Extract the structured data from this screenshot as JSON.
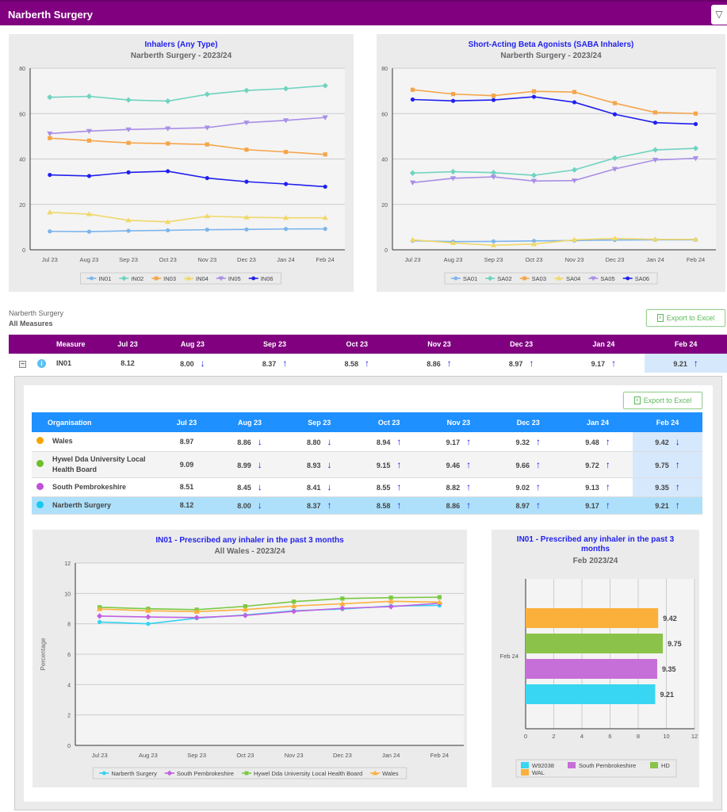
{
  "header": {
    "title": "Narberth Surgery",
    "filter_icon": "filter-icon"
  },
  "months": [
    "Jul 23",
    "Aug 23",
    "Sep 23",
    "Oct 23",
    "Nov 23",
    "Dec 23",
    "Jan 24",
    "Feb 24"
  ],
  "chart_data": [
    {
      "type": "line",
      "title": "Inhalers (Any Type)",
      "subtitle": "Narberth Surgery - 2023/24",
      "ylim": [
        0,
        80
      ],
      "yticks": [
        0,
        20,
        40,
        60,
        80
      ],
      "legend": "bottom",
      "series": [
        {
          "name": "IN01",
          "color": "#7cb5ec",
          "marker": "circle",
          "values": [
            8.12,
            8.0,
            8.37,
            8.58,
            8.86,
            8.97,
            9.17,
            9.21
          ]
        },
        {
          "name": "IN02",
          "color": "#6fd3c0",
          "marker": "diamond",
          "values": [
            67.2,
            67.6,
            66.0,
            65.5,
            68.5,
            70.2,
            71.0,
            72.3
          ]
        },
        {
          "name": "IN03",
          "color": "#f5a54a",
          "marker": "square",
          "values": [
            49.2,
            48.1,
            47.1,
            46.8,
            46.4,
            44.1,
            43.1,
            42.0
          ]
        },
        {
          "name": "IN04",
          "color": "#f0d86a",
          "marker": "triangle",
          "values": [
            16.5,
            15.7,
            13.0,
            12.3,
            14.8,
            14.3,
            14.1,
            14.1
          ]
        },
        {
          "name": "IN05",
          "color": "#a98ee6",
          "marker": "triangle-down",
          "values": [
            51.2,
            52.3,
            53.0,
            53.4,
            53.8,
            56.0,
            57.0,
            58.3
          ]
        },
        {
          "name": "IN06",
          "color": "#2020ee",
          "marker": "circle",
          "values": [
            33.0,
            32.5,
            34.1,
            34.6,
            31.6,
            30.0,
            29.0,
            27.8
          ]
        }
      ]
    },
    {
      "type": "line",
      "title": "Short-Acting Beta Agonists (SABA Inhalers)",
      "subtitle": "Narberth Surgery - 2023/24",
      "ylim": [
        0,
        80
      ],
      "yticks": [
        0,
        20,
        40,
        60,
        80
      ],
      "legend": "bottom",
      "series": [
        {
          "name": "SA01",
          "color": "#7cb5ec",
          "marker": "circle",
          "values": [
            4.0,
            3.6,
            3.7,
            3.9,
            4.1,
            4.3,
            4.4,
            4.4
          ]
        },
        {
          "name": "SA02",
          "color": "#6fd3c0",
          "marker": "diamond",
          "values": [
            33.8,
            34.4,
            34.0,
            32.8,
            35.2,
            40.4,
            44.0,
            44.7
          ]
        },
        {
          "name": "SA03",
          "color": "#f5a54a",
          "marker": "square",
          "values": [
            70.5,
            68.6,
            67.9,
            69.8,
            69.5,
            64.6,
            60.5,
            60.0
          ]
        },
        {
          "name": "SA04",
          "color": "#f0d86a",
          "marker": "triangle",
          "values": [
            4.4,
            3.0,
            2.0,
            2.5,
            4.4,
            5.0,
            4.6,
            4.6
          ]
        },
        {
          "name": "SA05",
          "color": "#a98ee6",
          "marker": "triangle-down",
          "values": [
            29.6,
            31.5,
            32.1,
            30.3,
            30.5,
            35.6,
            39.6,
            40.3
          ]
        },
        {
          "name": "SA06",
          "color": "#2020ee",
          "marker": "circle",
          "values": [
            66.2,
            65.6,
            66.0,
            67.4,
            65.0,
            59.7,
            56.0,
            55.4
          ]
        }
      ]
    },
    {
      "type": "line",
      "title": "IN01 - Prescribed any inhaler in the past 3 months",
      "subtitle": "All Wales - 2023/24",
      "ylabel": "Percentage",
      "ylim": [
        0,
        12
      ],
      "yticks": [
        0,
        2,
        4,
        6,
        8,
        10,
        12
      ],
      "legend": "bottom",
      "series": [
        {
          "name": "Narberth Surgery",
          "color": "#33d4f0",
          "marker": "circle",
          "values": [
            8.12,
            8.0,
            8.37,
            8.58,
            8.86,
            8.97,
            9.17,
            9.21
          ]
        },
        {
          "name": "South Pembrokeshire",
          "color": "#c060e0",
          "marker": "diamond",
          "values": [
            8.51,
            8.45,
            8.41,
            8.55,
            8.82,
            9.02,
            9.13,
            9.35
          ]
        },
        {
          "name": "Hywel Dda University Local Health Board",
          "color": "#7ac943",
          "marker": "square",
          "values": [
            9.09,
            8.99,
            8.93,
            9.15,
            9.46,
            9.66,
            9.72,
            9.75
          ]
        },
        {
          "name": "Wales",
          "color": "#fbb03b",
          "marker": "triangle",
          "values": [
            8.97,
            8.86,
            8.8,
            8.94,
            9.17,
            9.32,
            9.48,
            9.42
          ]
        }
      ]
    },
    {
      "type": "bar",
      "orientation": "horizontal",
      "title": "IN01 - Prescribed any inhaler in the past 3",
      "title2": "months",
      "subtitle": "Feb 2023/24",
      "category": "Feb 24",
      "xlim": [
        0,
        12
      ],
      "xticks": [
        0,
        2,
        4,
        6,
        8,
        10,
        12
      ],
      "bars": [
        {
          "name": "WAL",
          "value": 9.42,
          "color": "#fbb03b"
        },
        {
          "name": "HD",
          "value": 9.75,
          "color": "#8bc34a"
        },
        {
          "name": "South Pembrokeshire",
          "value": 9.35,
          "color": "#c66fd8"
        },
        {
          "name": "W92038",
          "value": 9.21,
          "color": "#38d6f2"
        }
      ],
      "legend_order": [
        "W92038",
        "South Pembrokeshire",
        "HD",
        "WAL"
      ]
    }
  ],
  "summary": {
    "org": "Narberth Surgery",
    "measures": "All Measures",
    "export_label": "Export to Excel"
  },
  "measure_table": {
    "headers": [
      "Measure",
      "Jul 23",
      "Aug 23",
      "Sep 23",
      "Oct 23",
      "Nov 23",
      "Dec 23",
      "Jan 24",
      "Feb 24"
    ],
    "row": {
      "measure": "IN01",
      "values": [
        "8.12",
        "8.00",
        "8.37",
        "8.58",
        "8.86",
        "8.97",
        "9.17",
        "9.21"
      ],
      "trends": [
        "",
        "down",
        "up",
        "up",
        "up",
        "up",
        "up",
        "up"
      ]
    }
  },
  "org_table": {
    "export_label": "Export to Excel",
    "headers": [
      "Organisation",
      "Jul 23",
      "Aug 23",
      "Sep 23",
      "Oct 23",
      "Nov 23",
      "Dec 23",
      "Jan 24",
      "Feb 24"
    ],
    "rows": [
      {
        "name": "Wales",
        "color": "#f7a400",
        "values": [
          "8.97",
          "8.86",
          "8.80",
          "8.94",
          "9.17",
          "9.32",
          "9.48",
          "9.42"
        ],
        "trends": [
          "",
          "down",
          "down",
          "up",
          "up",
          "up",
          "up",
          "down"
        ]
      },
      {
        "name": "Hywel Dda University Local Health Board",
        "color": "#6cc12a",
        "values": [
          "9.09",
          "8.99",
          "8.93",
          "9.15",
          "9.46",
          "9.66",
          "9.72",
          "9.75"
        ],
        "trends": [
          "",
          "down",
          "down",
          "up",
          "up",
          "up",
          "up",
          "up"
        ]
      },
      {
        "name": "South Pembrokeshire",
        "color": "#c050d8",
        "values": [
          "8.51",
          "8.45",
          "8.41",
          "8.55",
          "8.82",
          "9.02",
          "9.13",
          "9.35"
        ],
        "trends": [
          "",
          "down",
          "down",
          "up",
          "up",
          "up",
          "up",
          "up"
        ]
      },
      {
        "name": "Narberth Surgery",
        "color": "#18c8f0",
        "values": [
          "8.12",
          "8.00",
          "8.37",
          "8.58",
          "8.86",
          "8.97",
          "9.17",
          "9.21"
        ],
        "trends": [
          "",
          "down",
          "up",
          "up",
          "up",
          "up",
          "up",
          "up"
        ]
      }
    ]
  }
}
